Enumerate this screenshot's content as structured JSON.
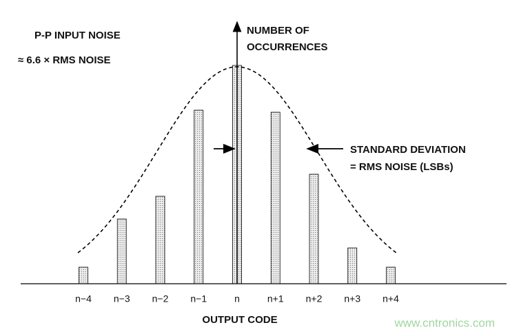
{
  "chart_data": {
    "type": "bar",
    "annotations": [
      "P-P INPUT NOISE",
      "≈ 6.6 × RMS NOISE",
      "NUMBER OF",
      "OCCURRENCES",
      "STANDARD DEVIATION",
      "= RMS NOISE (LSBs)"
    ],
    "xlabel": "OUTPUT CODE",
    "categories": [
      "n−4",
      "n−3",
      "n−2",
      "n−1",
      "n",
      "n+1",
      "n+2",
      "n+3",
      "n+4"
    ],
    "values": [
      24,
      94,
      127,
      252,
      317,
      249,
      159,
      52,
      24
    ],
    "color": "#ececec"
  },
  "watermark": "www.cntronics.com"
}
